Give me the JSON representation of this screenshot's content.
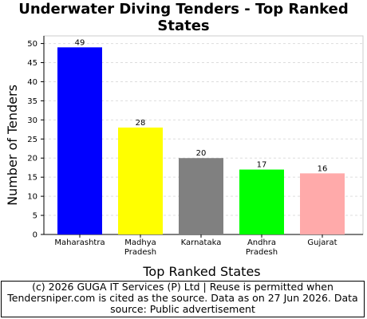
{
  "chart_data": {
    "type": "bar",
    "title": "Underwater Diving Tenders - Top Ranked States",
    "x_label": "Top Ranked States",
    "y_label": "Number of Tenders",
    "categories": [
      "Maharashtra",
      "Madhya Pradesh",
      "Karnataka",
      "Andhra Pradesh",
      "Gujarat"
    ],
    "values": [
      49,
      28,
      20,
      17,
      16
    ],
    "colors": [
      "#0000ff",
      "#ffff00",
      "#808080",
      "#00ff00",
      "#ffaaaa"
    ],
    "ylim": [
      0,
      52
    ],
    "yticks": [
      0,
      5,
      10,
      15,
      20,
      25,
      30,
      35,
      40,
      45,
      50
    ],
    "grid": true
  },
  "footer": "(c) 2026 GUGA IT Services (P) Ltd | Reuse is permitted when Tendersniper.com is cited as the source. Data as on 27 Jun 2026. Data source: Public advertisement"
}
